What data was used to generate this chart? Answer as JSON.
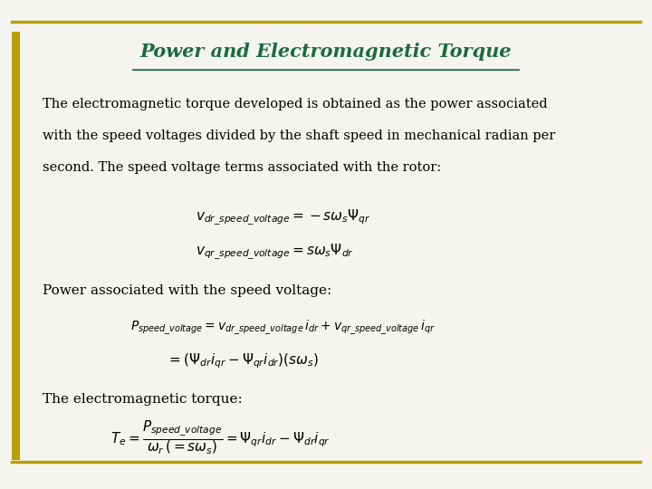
{
  "title": "Power and Electromagnetic Torque",
  "title_color": "#1a6b3c",
  "bg_color": "#f5f5f0",
  "border_color": "#b8a000",
  "accent_line_color": "#b8a000",
  "body_text_lines": [
    "The electromagnetic torque developed is obtained as the power associated",
    "with the speed voltages divided by the shaft speed in mechanical radian per",
    "second. The speed voltage terms associated with the rotor:"
  ],
  "eq1": "$v_{dr\\_speed\\_voltage} = -s\\omega_s\\Psi_{qr}$",
  "eq2": "$v_{qr\\_speed\\_voltage} = s\\omega_s\\Psi_{dr}$",
  "label2": "Power associated with the speed voltage:",
  "eq3": "$P_{speed\\_voltage} = v_{dr\\_speed\\_voltage}\\,i_{dr} + v_{qr\\_speed\\_voltage}\\,i_{qr}$",
  "eq4": "$= \\left(\\Psi_{dr}i_{qr} - \\Psi_{qr}i_{dr}\\right)\\left(s\\omega_s\\right)$",
  "label3": "The electromagnetic torque:",
  "eq5": "$T_e = \\dfrac{P_{speed\\_voltage}}{\\omega_r\\,(= s\\omega_s)} = \\Psi_{qr}i_{dr} - \\Psi_{dr}i_{qr}$",
  "figsize": [
    7.2,
    5.4
  ],
  "dpi": 100
}
